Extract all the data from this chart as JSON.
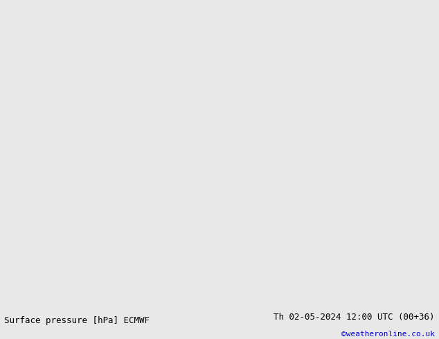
{
  "title_left": "Surface pressure [hPa] ECMWF",
  "title_right": "Th 02-05-2024 12:00 UTC (00+36)",
  "credit": "©weatheronline.co.uk",
  "bg_color": "#e8e8e8",
  "map_ocean_color": "#d0e8f0",
  "map_land_color": "#c8dba0",
  "fig_width": 6.34,
  "fig_height": 4.9,
  "dpi": 100,
  "bottom_bar_color": "#f0f0f0",
  "title_fontsize": 9,
  "credit_color": "#0000cc",
  "isobar_blue_color": "#0000cc",
  "isobar_black_color": "#000000",
  "isobar_red_color": "#cc0000",
  "label_fontsize": 7
}
